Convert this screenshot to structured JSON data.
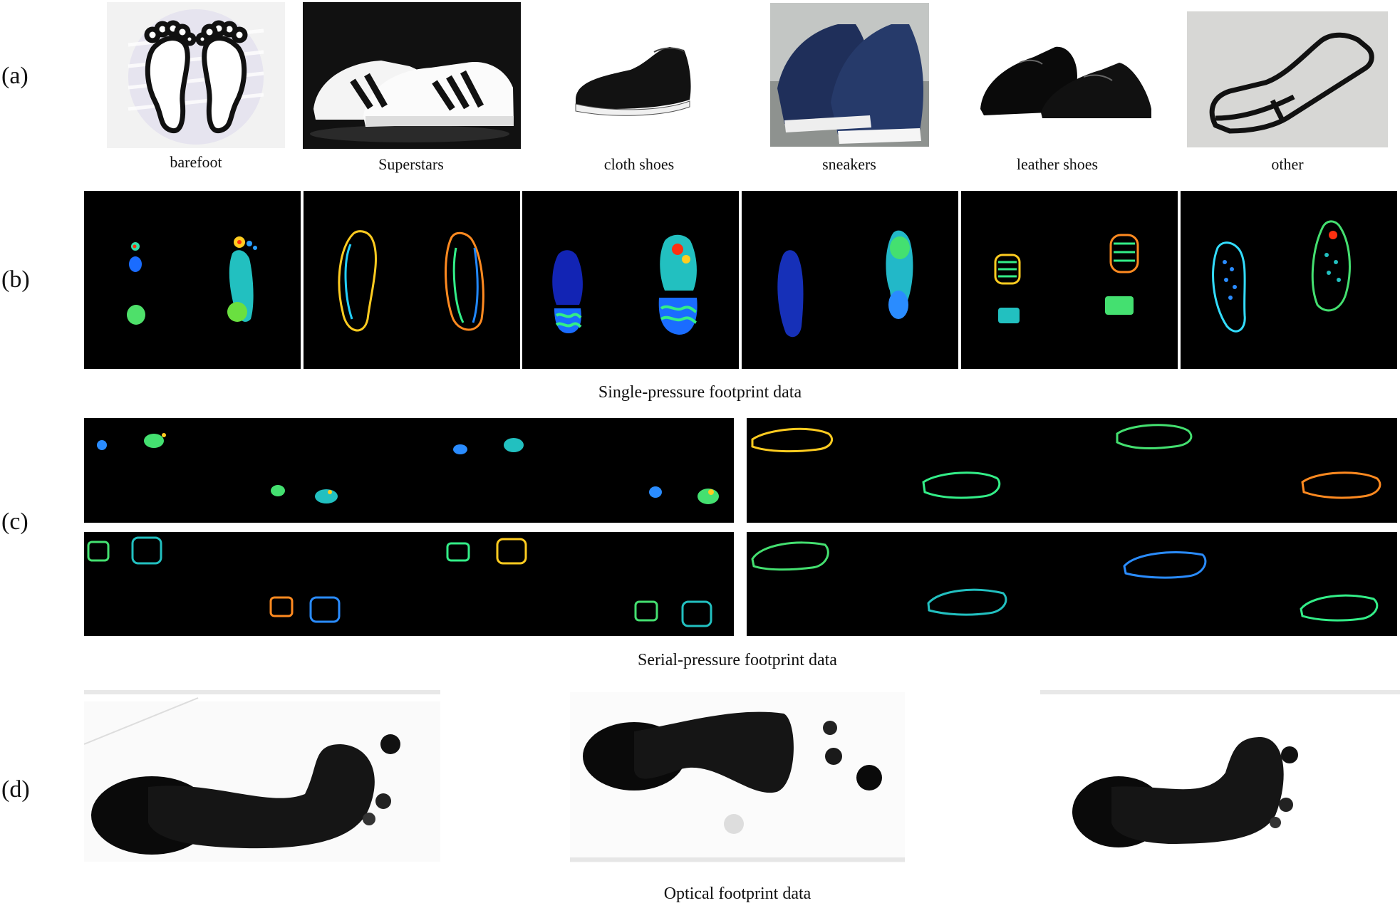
{
  "rows": {
    "a": {
      "label": "(a)"
    },
    "b": {
      "label": "(b)"
    },
    "c": {
      "label": "(c)"
    },
    "d": {
      "label": "(d)"
    }
  },
  "categories": [
    {
      "label": "barefoot",
      "icon": "bare-feet-icon"
    },
    {
      "label": "Superstars",
      "icon": "superstar-shoes-photo"
    },
    {
      "label": "cloth shoes",
      "icon": "cloth-shoe-photo"
    },
    {
      "label": "sneakers",
      "icon": "sneakers-photo"
    },
    {
      "label": "leather shoes",
      "icon": "leather-shoes-photo"
    },
    {
      "label": "other",
      "icon": "sneaker-outline-icon"
    }
  ],
  "captions": {
    "single": "Single-pressure footprint data",
    "serial": "Serial-pressure footprint data",
    "optical": "Optical footprint data"
  },
  "colors": {
    "pressure_background": "#000000",
    "pressure_low": "#1a3cff",
    "pressure_mid": "#22e0a0",
    "pressure_high": "#ff3010",
    "optical_ink": "#0a0a0a"
  }
}
